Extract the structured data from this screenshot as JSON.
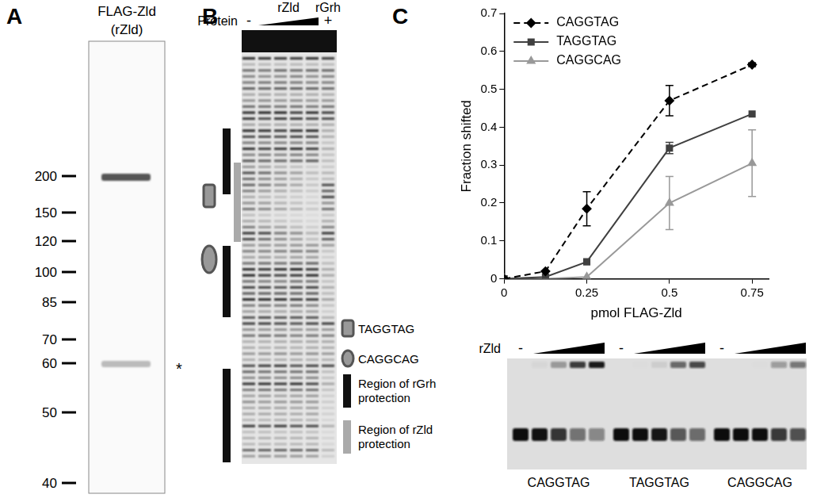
{
  "panels": {
    "A": {
      "label": "A",
      "header": [
        "FLAG-Zld",
        "(rZld)"
      ],
      "markers": [
        200,
        150,
        120,
        100,
        85,
        70,
        60,
        50,
        40
      ],
      "band_note": "*"
    },
    "B": {
      "label": "B",
      "header": {
        "protein": "Protein",
        "minus": "-",
        "rzld": "rZld",
        "rgrh": "rGrh",
        "plus": "+"
      },
      "key": [
        "TAGGTAG",
        "CAGGCAG",
        "Region of rGrh protection",
        "Region of rZld protection"
      ]
    },
    "C": {
      "label": "C",
      "gel": {
        "protein": "rZld",
        "minus": "-",
        "probes": [
          "CAGGTAG",
          "TAGGTAG",
          "CAGGCAG"
        ]
      }
    }
  },
  "chart_data": {
    "type": "line",
    "x_label": "pmol FLAG-Zld",
    "y_label": "Fraction shifted",
    "x": [
      0,
      0.125,
      0.25,
      0.5,
      0.75
    ],
    "series": [
      {
        "name": "CAGGTAG",
        "color": "#000000",
        "marker": "diamond",
        "line_style": "dashed",
        "values": [
          0,
          0.02,
          0.185,
          0.47,
          0.565
        ],
        "errors": [
          0,
          0,
          0.045,
          0.04,
          0.005
        ]
      },
      {
        "name": "TAGGTAG",
        "color": "#404040",
        "marker": "square",
        "line_style": "solid",
        "values": [
          0,
          0.005,
          0.045,
          0.345,
          0.435
        ],
        "errors": [
          0,
          0,
          0,
          0.015,
          0
        ]
      },
      {
        "name": "CAGGCAG",
        "color": "#999999",
        "marker": "triangle",
        "line_style": "solid",
        "values": [
          0,
          0,
          0.005,
          0.2,
          0.305
        ],
        "errors": [
          0,
          0,
          0,
          0.07,
          0.088
        ]
      }
    ],
    "xlim": [
      0,
      0.8
    ],
    "xticks": [
      0,
      0.25,
      0.5,
      0.75
    ],
    "ylim": [
      0,
      0.7
    ],
    "yticks": [
      0,
      0.1,
      0.2,
      0.3,
      0.4,
      0.5,
      0.6,
      0.7
    ],
    "grid": false,
    "legend": "upper left"
  }
}
